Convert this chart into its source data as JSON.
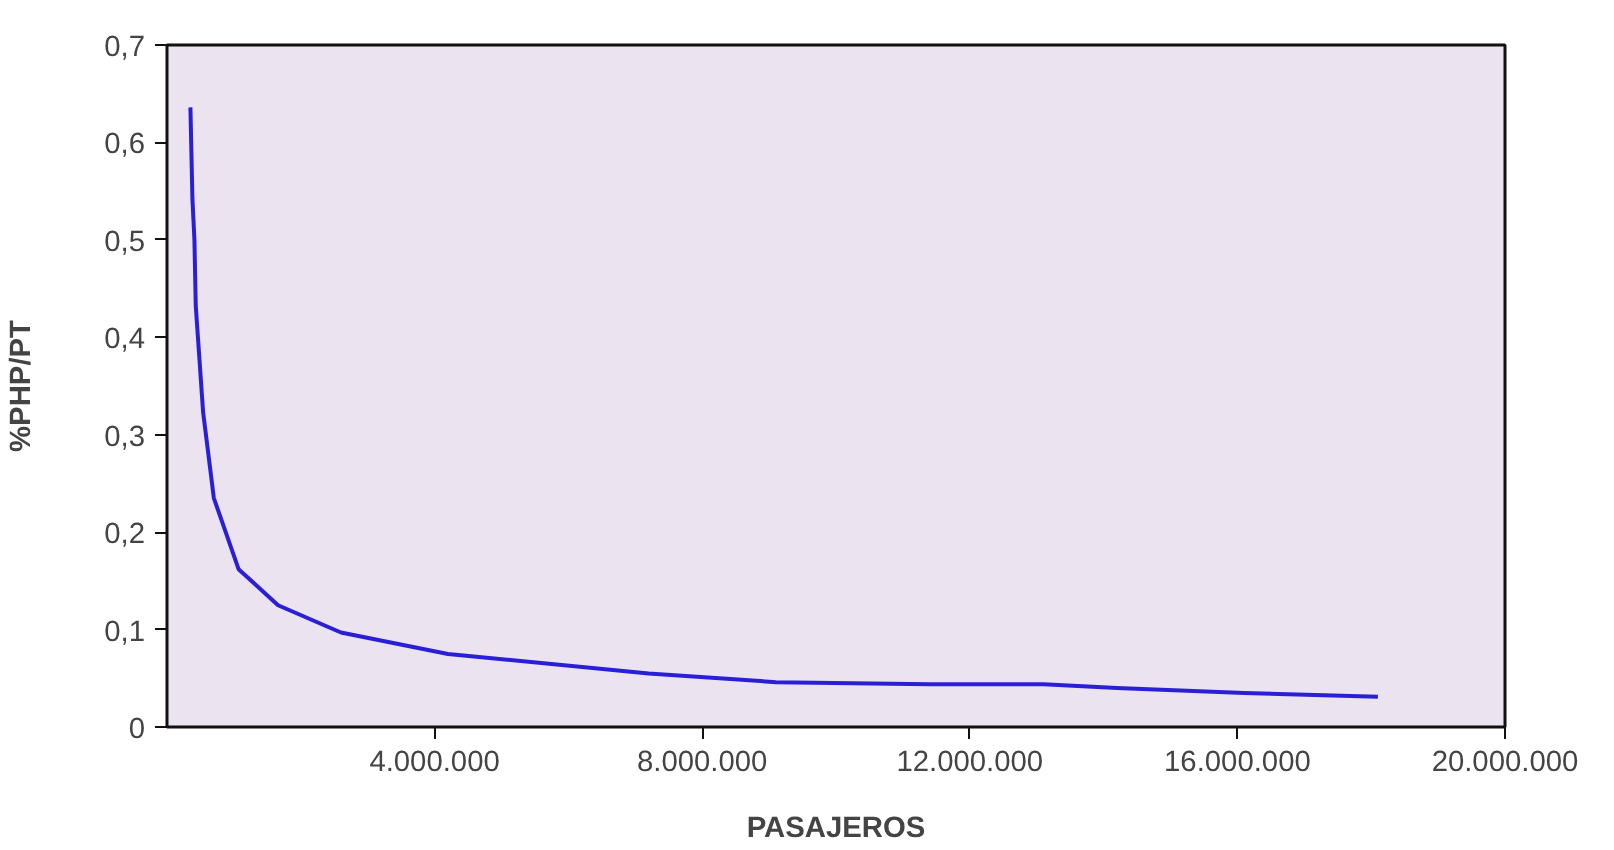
{
  "chart_data": {
    "type": "line",
    "xlabel": "PASAJEROS",
    "ylabel": "%PHP/PT",
    "x": [
      350000,
      380000,
      410000,
      430000,
      540000,
      700000,
      1070000,
      1660000,
      2600000,
      4200000,
      7200000,
      9100000,
      11400000,
      13100000,
      14200000,
      16100000,
      18100000
    ],
    "series": [
      {
        "color": "#2a1fd6",
        "values": [
          0.636,
          0.542,
          0.5,
          0.432,
          0.323,
          0.235,
          0.162,
          0.125,
          0.097,
          0.075,
          0.055,
          0.046,
          0.044,
          0.044,
          0.04,
          0.035,
          0.031
        ]
      }
    ],
    "xlim": [
      0,
      20000000
    ],
    "xticks": [
      {
        "value": 4000000,
        "label": "4.000.000"
      },
      {
        "value": 8000000,
        "label": "8.000.000"
      },
      {
        "value": 12000000,
        "label": "12.000.000"
      },
      {
        "value": 16000000,
        "label": "16.000.000"
      },
      {
        "value": 20000000,
        "label": "20.000.000"
      }
    ],
    "ylim": [
      0,
      0.7
    ],
    "yticks": [
      0,
      {
        "value": 0.1,
        "label": "0,1"
      },
      {
        "value": 0.2,
        "label": "0,2"
      },
      {
        "value": 0.3,
        "label": "0,3"
      },
      {
        "value": 0.4,
        "label": "0,4"
      },
      {
        "value": 0.5,
        "label": "0,5"
      },
      {
        "value": 0.6,
        "label": "0,6"
      },
      {
        "value": 0.7,
        "label": "0,7"
      }
    ],
    "grid": false,
    "marker": "none",
    "line_style": "solid"
  }
}
